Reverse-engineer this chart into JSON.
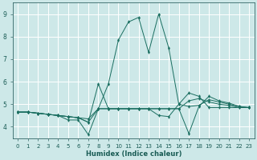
{
  "xlabel": "Humidex (Indice chaleur)",
  "background_color": "#cde8e8",
  "grid_color": "#ffffff",
  "line_color": "#1a6e60",
  "xlim": [
    -0.5,
    23.5
  ],
  "ylim": [
    3.5,
    9.5
  ],
  "xticks": [
    0,
    1,
    2,
    3,
    4,
    5,
    6,
    7,
    8,
    9,
    10,
    11,
    12,
    13,
    14,
    15,
    16,
    17,
    18,
    19,
    20,
    21,
    22,
    23
  ],
  "yticks": [
    4,
    5,
    6,
    7,
    8,
    9
  ],
  "series": [
    [
      4.65,
      4.65,
      4.6,
      4.55,
      4.5,
      4.45,
      4.4,
      4.35,
      4.8,
      5.9,
      7.85,
      8.65,
      8.85,
      7.3,
      9.0,
      7.5,
      5.0,
      4.9,
      4.95,
      5.2,
      5.1,
      5.0,
      4.9,
      4.85
    ],
    [
      4.65,
      4.65,
      4.6,
      4.55,
      4.5,
      4.3,
      4.3,
      3.65,
      4.8,
      4.8,
      4.8,
      4.8,
      4.8,
      4.8,
      4.8,
      4.8,
      4.8,
      3.7,
      4.9,
      5.35,
      5.15,
      5.05,
      4.9,
      4.85
    ],
    [
      4.65,
      4.65,
      4.6,
      4.55,
      4.5,
      4.45,
      4.4,
      4.2,
      5.9,
      4.8,
      4.8,
      4.8,
      4.8,
      4.8,
      4.5,
      4.45,
      5.0,
      5.5,
      5.35,
      4.85,
      4.85,
      4.85,
      4.85,
      4.85
    ],
    [
      4.65,
      4.65,
      4.6,
      4.55,
      4.5,
      4.45,
      4.4,
      4.2,
      4.8,
      4.8,
      4.8,
      4.8,
      4.8,
      4.8,
      4.8,
      4.8,
      4.8,
      5.15,
      5.25,
      5.1,
      5.0,
      4.95,
      4.85,
      4.85
    ]
  ]
}
